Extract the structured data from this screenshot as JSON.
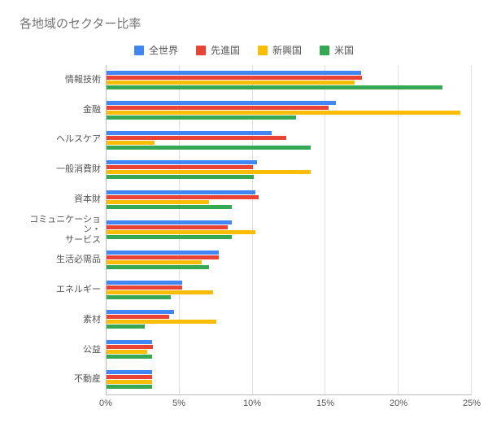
{
  "chart": {
    "type": "bar-horizontal-grouped",
    "title": "各地域のセクター比率",
    "background_color": "#ffffff",
    "grid_color": "#e0e0e0",
    "axis_color": "#bdbdbd",
    "text_color": "#555555",
    "title_color": "#757575",
    "title_fontsize": 15,
    "label_fontsize": 11,
    "legend_fontsize": 12,
    "x_max": 25,
    "x_tick_step": 5,
    "x_ticks": [
      "0%",
      "5%",
      "10%",
      "15%",
      "20%",
      "25%"
    ],
    "series": [
      {
        "name": "全世界",
        "color": "#4285f4"
      },
      {
        "name": "先進国",
        "color": "#ea4335"
      },
      {
        "name": "新興国",
        "color": "#fbbc04"
      },
      {
        "name": "米国",
        "color": "#34a853"
      }
    ],
    "categories": [
      {
        "label": "情報技術",
        "values": [
          17.4,
          17.5,
          17.0,
          23.0
        ]
      },
      {
        "label": "金融",
        "values": [
          15.7,
          15.2,
          24.2,
          13.0
        ]
      },
      {
        "label": "ヘルスケア",
        "values": [
          11.3,
          12.3,
          3.3,
          14.0
        ]
      },
      {
        "label": "一般消費財",
        "values": [
          10.3,
          10.0,
          14.0,
          10.1
        ]
      },
      {
        "label": "資本財",
        "values": [
          10.2,
          10.4,
          7.0,
          8.6
        ]
      },
      {
        "label": "コミュニケーション・\nサービス",
        "values": [
          8.6,
          8.3,
          10.2,
          8.6
        ]
      },
      {
        "label": "生活必需品",
        "values": [
          7.7,
          7.7,
          6.5,
          7.0
        ]
      },
      {
        "label": "エネルギー",
        "values": [
          5.2,
          5.2,
          7.3,
          4.4
        ]
      },
      {
        "label": "素材",
        "values": [
          4.6,
          4.3,
          7.5,
          2.6
        ]
      },
      {
        "label": "公益",
        "values": [
          3.1,
          3.2,
          2.8,
          3.1
        ]
      },
      {
        "label": "不動産",
        "values": [
          3.1,
          3.1,
          3.1,
          3.1
        ]
      }
    ]
  }
}
